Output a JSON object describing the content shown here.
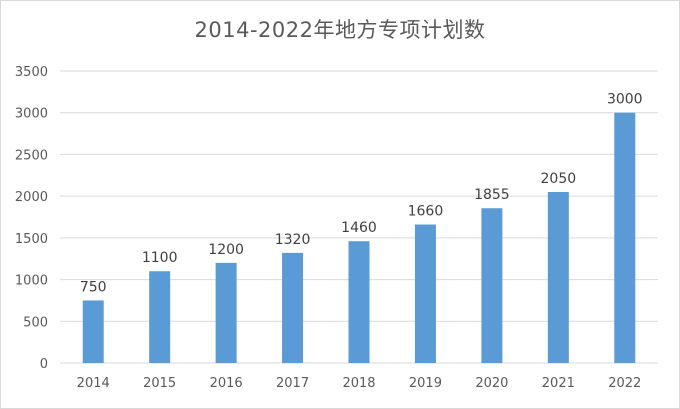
{
  "chart_data": {
    "type": "bar",
    "title": "2014-2022年地方专项计划数",
    "xlabel": "",
    "ylabel": "",
    "categories": [
      "2014",
      "2015",
      "2016",
      "2017",
      "2018",
      "2019",
      "2020",
      "2021",
      "2022"
    ],
    "values": [
      750,
      1100,
      1200,
      1320,
      1460,
      1660,
      1855,
      2050,
      3000
    ],
    "data_labels": [
      "750",
      "1100",
      "1200",
      "1320",
      "1460",
      "1660",
      "1855",
      "2050",
      "3000"
    ],
    "ylim": [
      0,
      3500
    ],
    "yticks": [
      0,
      500,
      1000,
      1500,
      2000,
      2500,
      3000,
      3500
    ],
    "grid": true,
    "legend": "none",
    "bar_color": "#5b9bd5",
    "grid_color": "#d9d9d9",
    "text_color": "#595959"
  }
}
